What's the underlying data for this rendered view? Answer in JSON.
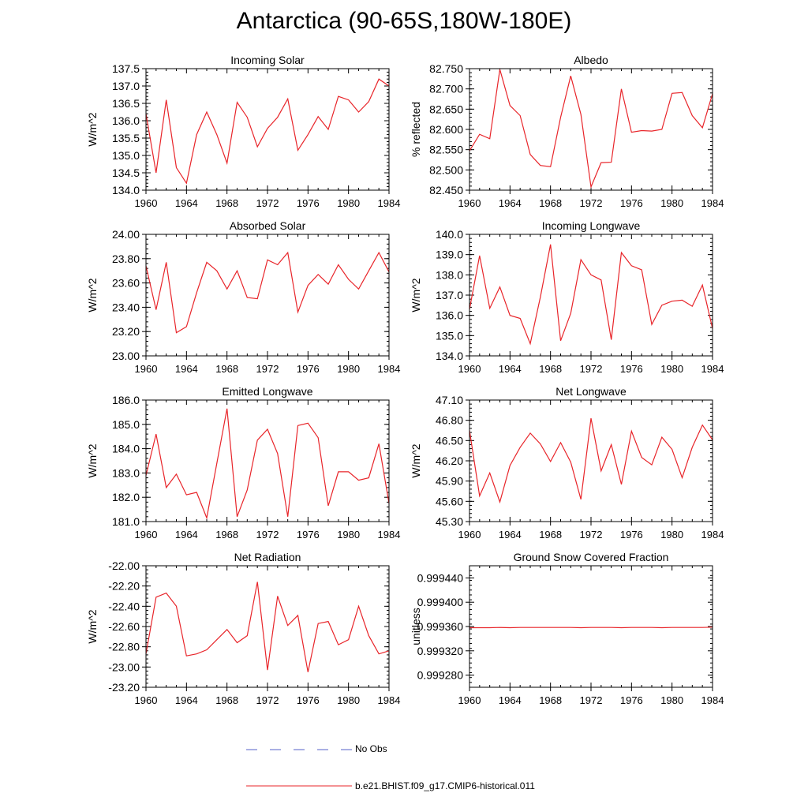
{
  "page_title": "Antarctica (90-65S,180W-180E)",
  "legend": [
    {
      "label": "No Obs",
      "color": "#5560c8",
      "style": "dashed"
    },
    {
      "label": "b.e21.BHIST.f09_g17.CMIP6-historical.011",
      "color": "#e8252a",
      "style": "solid"
    }
  ],
  "chart_data": [
    {
      "type": "line",
      "title": "Incoming Solar",
      "ylabel": "W/m^2",
      "xlim": [
        1960,
        1984
      ],
      "ylim": [
        134.0,
        137.5
      ],
      "xticks": [
        1960,
        1964,
        1968,
        1972,
        1976,
        1980,
        1984
      ],
      "yticks": [
        "134.0",
        "134.5",
        "135.0",
        "135.5",
        "136.0",
        "136.5",
        "137.0",
        "137.5"
      ],
      "x": [
        1960,
        1961,
        1962,
        1963,
        1964,
        1965,
        1966,
        1967,
        1968,
        1969,
        1970,
        1971,
        1972,
        1973,
        1974,
        1975,
        1976,
        1977,
        1978,
        1979,
        1980,
        1981,
        1982,
        1983,
        1984
      ],
      "series": [
        {
          "values": [
            136.2,
            134.5,
            136.6,
            134.65,
            134.2,
            135.6,
            136.25,
            135.6,
            134.78,
            136.53,
            136.1,
            135.25,
            135.78,
            136.1,
            136.63,
            135.15,
            135.6,
            136.12,
            135.75,
            136.7,
            136.6,
            136.25,
            136.55,
            137.2,
            137.0
          ]
        }
      ]
    },
    {
      "type": "line",
      "title": "Albedo",
      "ylabel": "% reflected",
      "xlim": [
        1960,
        1984
      ],
      "ylim": [
        82.45,
        82.75
      ],
      "xticks": [
        1960,
        1964,
        1968,
        1972,
        1976,
        1980,
        1984
      ],
      "yticks": [
        "82.450",
        "82.500",
        "82.550",
        "82.600",
        "82.650",
        "82.700",
        "82.750"
      ],
      "x": [
        1960,
        1961,
        1962,
        1963,
        1964,
        1965,
        1966,
        1967,
        1968,
        1969,
        1970,
        1971,
        1972,
        1973,
        1974,
        1975,
        1976,
        1977,
        1978,
        1979,
        1980,
        1981,
        1982,
        1983,
        1984
      ],
      "series": [
        {
          "values": [
            82.547,
            82.588,
            82.577,
            82.748,
            82.659,
            82.634,
            82.538,
            82.511,
            82.508,
            82.63,
            82.732,
            82.637,
            82.458,
            82.518,
            82.519,
            82.7,
            82.593,
            82.597,
            82.596,
            82.6,
            82.689,
            82.691,
            82.634,
            82.604,
            82.688
          ]
        }
      ]
    },
    {
      "type": "line",
      "title": "Absorbed Solar",
      "ylabel": "W/m^2",
      "xlim": [
        1960,
        1984
      ],
      "ylim": [
        23.0,
        24.0
      ],
      "xticks": [
        1960,
        1964,
        1968,
        1972,
        1976,
        1980,
        1984
      ],
      "yticks": [
        "23.00",
        "23.20",
        "23.40",
        "23.60",
        "23.80",
        "24.00"
      ],
      "x": [
        1960,
        1961,
        1962,
        1963,
        1964,
        1965,
        1966,
        1967,
        1968,
        1969,
        1970,
        1971,
        1972,
        1973,
        1974,
        1975,
        1976,
        1977,
        1978,
        1979,
        1980,
        1981,
        1982,
        1983,
        1984
      ],
      "series": [
        {
          "values": [
            23.74,
            23.38,
            23.77,
            23.19,
            23.24,
            23.52,
            23.77,
            23.7,
            23.55,
            23.7,
            23.48,
            23.47,
            23.79,
            23.75,
            23.85,
            23.36,
            23.58,
            23.67,
            23.59,
            23.75,
            23.63,
            23.55,
            23.7,
            23.85,
            23.69
          ]
        }
      ]
    },
    {
      "type": "line",
      "title": "Incoming Longwave",
      "ylabel": "W/m^2",
      "xlim": [
        1960,
        1984
      ],
      "ylim": [
        134.0,
        140.0
      ],
      "xticks": [
        1960,
        1964,
        1968,
        1972,
        1976,
        1980,
        1984
      ],
      "yticks": [
        "134.0",
        "135.0",
        "136.0",
        "137.0",
        "138.0",
        "139.0",
        "140.0"
      ],
      "x": [
        1960,
        1961,
        1962,
        1963,
        1964,
        1965,
        1966,
        1967,
        1968,
        1969,
        1970,
        1971,
        1972,
        1973,
        1974,
        1975,
        1976,
        1977,
        1978,
        1979,
        1980,
        1981,
        1982,
        1983,
        1984
      ],
      "series": [
        {
          "values": [
            136.3,
            138.95,
            136.35,
            137.4,
            136.0,
            135.85,
            134.6,
            136.9,
            139.5,
            134.75,
            136.1,
            138.75,
            138.0,
            137.75,
            134.8,
            139.1,
            138.45,
            138.25,
            135.55,
            136.5,
            136.7,
            136.75,
            136.45,
            137.5,
            135.35
          ]
        }
      ]
    },
    {
      "type": "line",
      "title": "Emitted Longwave",
      "ylabel": "W/m^2",
      "xlim": [
        1960,
        1984
      ],
      "ylim": [
        181.0,
        186.0
      ],
      "xticks": [
        1960,
        1964,
        1968,
        1972,
        1976,
        1980,
        1984
      ],
      "yticks": [
        "181.0",
        "182.0",
        "183.0",
        "184.0",
        "185.0",
        "186.0"
      ],
      "x": [
        1960,
        1961,
        1962,
        1963,
        1964,
        1965,
        1966,
        1967,
        1968,
        1969,
        1970,
        1971,
        1972,
        1973,
        1974,
        1975,
        1976,
        1977,
        1978,
        1979,
        1980,
        1981,
        1982,
        1983,
        1984
      ],
      "series": [
        {
          "values": [
            182.9,
            184.6,
            182.4,
            182.95,
            182.1,
            182.2,
            181.15,
            183.4,
            185.65,
            181.2,
            182.3,
            184.35,
            184.8,
            183.8,
            181.2,
            184.95,
            185.05,
            184.45,
            181.65,
            183.05,
            183.05,
            182.7,
            182.8,
            184.2,
            181.75
          ]
        }
      ]
    },
    {
      "type": "line",
      "title": "Net Longwave",
      "ylabel": "W/m^2",
      "xlim": [
        1960,
        1984
      ],
      "ylim": [
        45.3,
        47.1
      ],
      "xticks": [
        1960,
        1964,
        1968,
        1972,
        1976,
        1980,
        1984
      ],
      "yticks": [
        "45.30",
        "45.60",
        "45.90",
        "46.20",
        "46.50",
        "46.80",
        "47.10"
      ],
      "x": [
        1960,
        1961,
        1962,
        1963,
        1964,
        1965,
        1966,
        1967,
        1968,
        1969,
        1970,
        1971,
        1972,
        1973,
        1974,
        1975,
        1976,
        1977,
        1978,
        1979,
        1980,
        1981,
        1982,
        1983,
        1984
      ],
      "series": [
        {
          "values": [
            46.65,
            45.68,
            46.02,
            45.59,
            46.13,
            46.4,
            46.61,
            46.45,
            46.19,
            46.47,
            46.18,
            45.63,
            46.83,
            46.05,
            46.44,
            45.85,
            46.64,
            46.25,
            46.14,
            46.55,
            46.37,
            45.95,
            46.4,
            46.73,
            46.51
          ]
        }
      ]
    },
    {
      "type": "line",
      "title": "Net Radiation",
      "ylabel": "W/m^2",
      "xlim": [
        1960,
        1984
      ],
      "ylim": [
        -23.2,
        -22.0
      ],
      "xticks": [
        1960,
        1964,
        1968,
        1972,
        1976,
        1980,
        1984
      ],
      "yticks": [
        "-23.20",
        "-23.00",
        "-22.80",
        "-22.60",
        "-22.40",
        "-22.20",
        "-22.00"
      ],
      "x": [
        1960,
        1961,
        1962,
        1963,
        1964,
        1965,
        1966,
        1967,
        1968,
        1969,
        1970,
        1971,
        1972,
        1973,
        1974,
        1975,
        1976,
        1977,
        1978,
        1979,
        1980,
        1981,
        1982,
        1983,
        1984
      ],
      "series": [
        {
          "values": [
            -22.87,
            -22.31,
            -22.27,
            -22.4,
            -22.89,
            -22.87,
            -22.83,
            -22.73,
            -22.63,
            -22.76,
            -22.69,
            -22.16,
            -23.03,
            -22.3,
            -22.59,
            -22.49,
            -23.05,
            -22.57,
            -22.55,
            -22.78,
            -22.73,
            -22.4,
            -22.69,
            -22.87,
            -22.84
          ]
        }
      ]
    },
    {
      "type": "line",
      "title": "Ground Snow Covered Fraction",
      "ylabel": "unitless",
      "xlim": [
        1960,
        1984
      ],
      "ylim": [
        0.99926,
        0.99946
      ],
      "xticks": [
        1960,
        1964,
        1968,
        1972,
        1976,
        1980,
        1984
      ],
      "yticks": [
        "0.999280",
        "0.999320",
        "0.999360",
        "0.999400",
        "0.999440"
      ],
      "x": [
        1960,
        1961,
        1962,
        1963,
        1964,
        1965,
        1966,
        1967,
        1968,
        1969,
        1970,
        1971,
        1972,
        1973,
        1974,
        1975,
        1976,
        1977,
        1978,
        1979,
        1980,
        1981,
        1982,
        1983,
        1984
      ],
      "series": [
        {
          "values": [
            0.999358,
            0.999358,
            0.999358,
            0.9993585,
            0.999358,
            0.9993585,
            0.9993585,
            0.9993585,
            0.9993585,
            0.9993585,
            0.9993585,
            0.999358,
            0.9993585,
            0.9993585,
            0.9993585,
            0.999358,
            0.9993585,
            0.9993585,
            0.9993585,
            0.999358,
            0.9993585,
            0.9993585,
            0.9993585,
            0.9993585,
            0.999359
          ]
        }
      ]
    }
  ]
}
